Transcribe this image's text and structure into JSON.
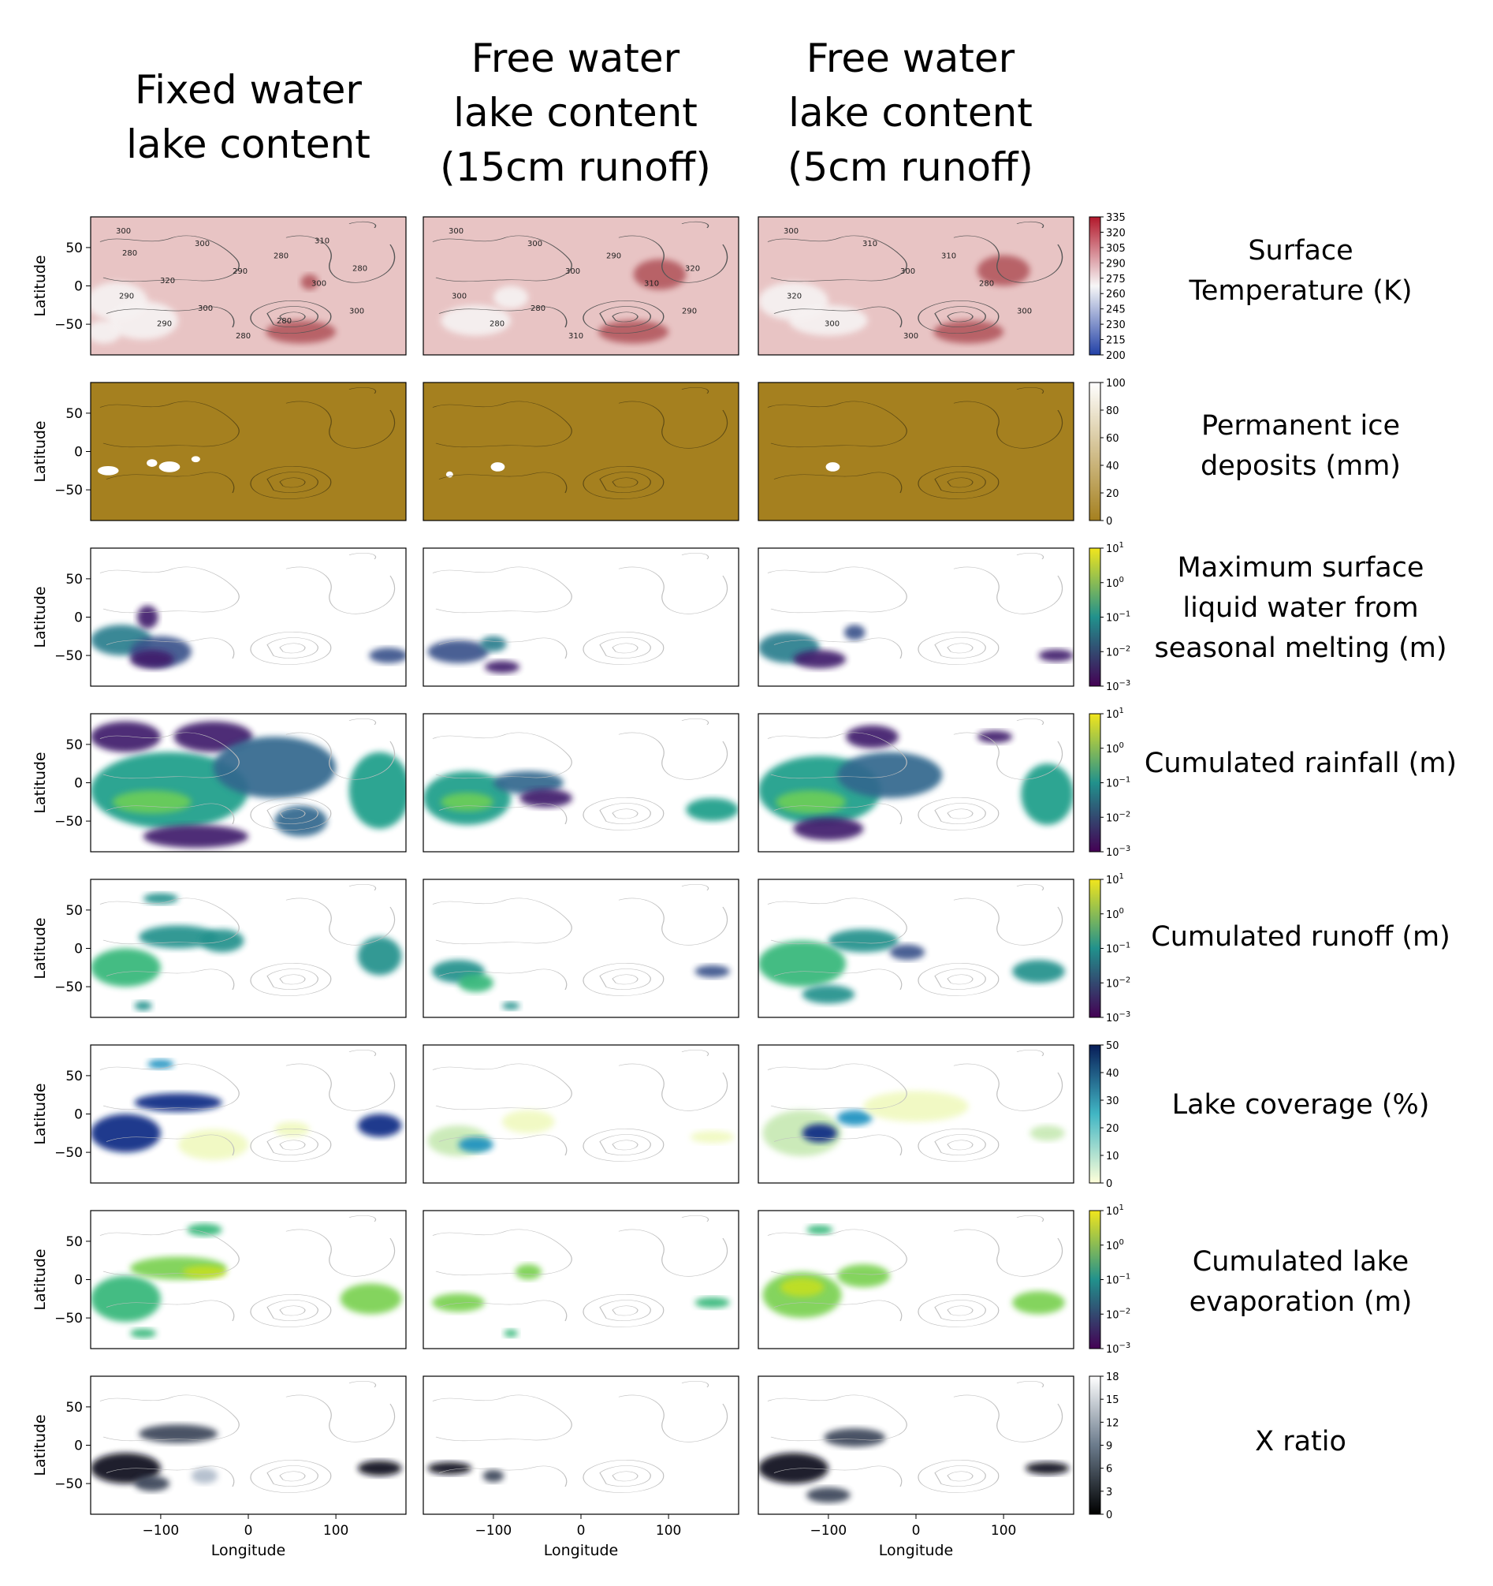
{
  "columns": [
    {
      "title_lines": [
        "Fixed water",
        "lake content"
      ]
    },
    {
      "title_lines": [
        "Free water",
        "lake content",
        "(15cm runoff)"
      ]
    },
    {
      "title_lines": [
        "Free water",
        "lake content",
        "(5cm runoff)"
      ]
    }
  ],
  "rows": [
    {
      "key": "temp",
      "label_lines": [
        "Surface",
        "Temperature (K)"
      ],
      "colorbar_ticks": [
        "335",
        "320",
        "305",
        "290",
        "275",
        "260",
        "245",
        "230",
        "215",
        "200"
      ],
      "colors": {
        "bg": "#e8c4c4",
        "low": "#f6f2f2",
        "high": "#b45a60",
        "cbar_top": "#b2182b",
        "cbar_mid": "#f7f7f7",
        "cbar_bottom": "#2140a6"
      },
      "contour_labels": [
        [
          "300",
          "290",
          "300",
          "300",
          "300",
          "290",
          "280",
          "290",
          "280",
          "280",
          "300",
          "310",
          "320",
          "280",
          "280"
        ],
        [
          "300",
          "300",
          "290",
          "300",
          "310",
          "280",
          "290",
          "300",
          "310",
          "320",
          "280"
        ],
        [
          "300",
          "300",
          "300",
          "310",
          "280",
          "300",
          "310",
          "320",
          "300"
        ]
      ]
    },
    {
      "key": "ice",
      "label_lines": [
        "Permanent ice",
        "deposits (mm)"
      ],
      "colorbar_ticks": [
        "100",
        "80",
        "60",
        "40",
        "20",
        "0"
      ],
      "colors": {
        "bg": "#a5801f",
        "cbar_top": "#ffffff",
        "cbar_bottom": "#a5801f"
      }
    },
    {
      "key": "melt",
      "label_lines": [
        "Maximum surface",
        "liquid water from",
        "seasonal melting (m)"
      ],
      "colorbar_ticks": [
        "10^1",
        "10^0",
        "10^-1",
        "10^-2",
        "10^-3"
      ],
      "colors": {
        "bg": "#ffffff",
        "a": "#2a7e8e",
        "b": "#3b528b",
        "c": "#3f1e6c",
        "cbar_top": "#f1e51d",
        "cbar_mid": "#21918c",
        "cbar_bottom": "#440154"
      }
    },
    {
      "key": "rain",
      "label_lines": [
        "Cumulated rainfall (m)"
      ],
      "colorbar_ticks": [
        "10^1",
        "10^0",
        "10^-1",
        "10^-2",
        "10^-3"
      ],
      "colors": {
        "bg": "#ffffff",
        "a": "#1f9e89",
        "b": "#31688e",
        "c": "#3f1e6c",
        "d": "#6cce59",
        "cbar_top": "#f1e51d",
        "cbar_mid": "#21918c",
        "cbar_bottom": "#440154"
      }
    },
    {
      "key": "runoff",
      "label_lines": [
        "Cumulated runoff (m)"
      ],
      "colorbar_ticks": [
        "10^1",
        "10^0",
        "10^-1",
        "10^-2",
        "10^-3"
      ],
      "colors": {
        "bg": "#ffffff",
        "a": "#35b779",
        "b": "#21918c",
        "c": "#3b528b",
        "cbar_top": "#f1e51d",
        "cbar_mid": "#21918c",
        "cbar_bottom": "#440154"
      }
    },
    {
      "key": "lake",
      "label_lines": [
        "Lake coverage (%)"
      ],
      "colorbar_ticks": [
        "50",
        "40",
        "30",
        "20",
        "10",
        "0"
      ],
      "colors": {
        "bg": "#ffffff",
        "a": "#0c2c84",
        "b": "#1d91c0",
        "c": "#c7e9b4",
        "d": "#f0f9c0",
        "cbar_top": "#081d58",
        "cbar_mid": "#41b6c4",
        "cbar_bottom": "#ffffd9"
      }
    },
    {
      "key": "evap",
      "label_lines": [
        "Cumulated lake",
        "evaporation (m)"
      ],
      "colorbar_ticks": [
        "10^1",
        "10^0",
        "10^-1",
        "10^-2",
        "10^-3"
      ],
      "colors": {
        "bg": "#ffffff",
        "a": "#7ad151",
        "b": "#35b779",
        "c": "#c2df23",
        "cbar_top": "#f1e51d",
        "cbar_mid": "#21918c",
        "cbar_bottom": "#440154"
      }
    },
    {
      "key": "xratio",
      "label_lines": [
        "X ratio"
      ],
      "colorbar_ticks": [
        "18",
        "15",
        "12",
        "9",
        "6",
        "3",
        "0"
      ],
      "colors": {
        "bg": "#ffffff",
        "a": "#0d0d1a",
        "b": "#3a4458",
        "c": "#b0bccb",
        "cbar_top": "#ffffff",
        "cbar_mid": "#6b7b8c",
        "cbar_bottom": "#000000"
      }
    }
  ],
  "chart_data": {
    "type": "heatmap",
    "layout": "8 rows x 3 columns of global longitude-latitude maps",
    "ylabel": "Latitude",
    "xlabel": "Longitude",
    "yticks": [
      50,
      0,
      -50
    ],
    "xticks": [
      -100,
      0,
      100
    ],
    "xlim": [
      -180,
      180
    ],
    "ylim": [
      -90,
      90
    ],
    "ytick_labels": [
      "50",
      "0",
      "−50"
    ],
    "xtick_labels": [
      "−100",
      "0",
      "100"
    ],
    "notes": "Blob regions give approximate spatial coverage in lon/lat (degrees); values are qualitative."
  },
  "blobs": {
    "temp": [
      [
        {
          "lon": -150,
          "lat": -20,
          "rx": 35,
          "ry": 25,
          "c": "low"
        },
        {
          "lon": -120,
          "lat": -45,
          "rx": 40,
          "ry": 25,
          "c": "low"
        },
        {
          "lon": -165,
          "lat": -60,
          "rx": 20,
          "ry": 15,
          "c": "low"
        },
        {
          "lon": 70,
          "lat": 5,
          "rx": 10,
          "ry": 10,
          "c": "high"
        },
        {
          "lon": 60,
          "lat": -60,
          "rx": 40,
          "ry": 15,
          "c": "high"
        }
      ],
      [
        {
          "lon": -120,
          "lat": -45,
          "rx": 40,
          "ry": 20,
          "c": "low"
        },
        {
          "lon": -80,
          "lat": -15,
          "rx": 20,
          "ry": 15,
          "c": "low"
        },
        {
          "lon": 90,
          "lat": 15,
          "rx": 30,
          "ry": 20,
          "c": "high"
        },
        {
          "lon": 60,
          "lat": -60,
          "rx": 40,
          "ry": 15,
          "c": "high"
        }
      ],
      [
        {
          "lon": -140,
          "lat": -20,
          "rx": 40,
          "ry": 25,
          "c": "low"
        },
        {
          "lon": -100,
          "lat": -45,
          "rx": 45,
          "ry": 20,
          "c": "low"
        },
        {
          "lon": 100,
          "lat": 20,
          "rx": 30,
          "ry": 20,
          "c": "high"
        },
        {
          "lon": 60,
          "lat": -60,
          "rx": 40,
          "ry": 15,
          "c": "high"
        }
      ]
    ],
    "ice": [
      [
        {
          "lon": -160,
          "lat": -25,
          "rx": 12,
          "ry": 6,
          "c": "cbar_top"
        },
        {
          "lon": -110,
          "lat": -15,
          "rx": 6,
          "ry": 5,
          "c": "cbar_top"
        },
        {
          "lon": -90,
          "lat": -20,
          "rx": 12,
          "ry": 7,
          "c": "cbar_top"
        },
        {
          "lon": -60,
          "lat": -10,
          "rx": 5,
          "ry": 4,
          "c": "cbar_top"
        }
      ],
      [
        {
          "lon": -150,
          "lat": -30,
          "rx": 4,
          "ry": 4,
          "c": "cbar_top"
        },
        {
          "lon": -95,
          "lat": -20,
          "rx": 8,
          "ry": 6,
          "c": "cbar_top"
        }
      ],
      [
        {
          "lon": -95,
          "lat": -20,
          "rx": 8,
          "ry": 6,
          "c": "cbar_top"
        }
      ]
    ],
    "melt": [
      [
        {
          "lon": -145,
          "lat": -30,
          "rx": 35,
          "ry": 20,
          "c": "a"
        },
        {
          "lon": -100,
          "lat": -45,
          "rx": 35,
          "ry": 20,
          "c": "b"
        },
        {
          "lon": -115,
          "lat": 0,
          "rx": 12,
          "ry": 15,
          "c": "c"
        },
        {
          "lon": -110,
          "lat": -55,
          "rx": 25,
          "ry": 12,
          "c": "c"
        },
        {
          "lon": 160,
          "lat": -50,
          "rx": 22,
          "ry": 10,
          "c": "b"
        }
      ],
      [
        {
          "lon": -140,
          "lat": -45,
          "rx": 35,
          "ry": 15,
          "c": "b"
        },
        {
          "lon": -100,
          "lat": -35,
          "rx": 15,
          "ry": 10,
          "c": "a"
        },
        {
          "lon": -90,
          "lat": -65,
          "rx": 20,
          "ry": 8,
          "c": "c"
        }
      ],
      [
        {
          "lon": -145,
          "lat": -40,
          "rx": 35,
          "ry": 20,
          "c": "a"
        },
        {
          "lon": -110,
          "lat": -55,
          "rx": 30,
          "ry": 12,
          "c": "c"
        },
        {
          "lon": -70,
          "lat": -20,
          "rx": 12,
          "ry": 10,
          "c": "b"
        },
        {
          "lon": 160,
          "lat": -50,
          "rx": 20,
          "ry": 8,
          "c": "c"
        }
      ]
    ],
    "rain": [
      [
        {
          "lon": -90,
          "lat": -10,
          "rx": 90,
          "ry": 50,
          "c": "a"
        },
        {
          "lon": -140,
          "lat": 60,
          "rx": 40,
          "ry": 20,
          "c": "c"
        },
        {
          "lon": -40,
          "lat": 60,
          "rx": 45,
          "ry": 20,
          "c": "c"
        },
        {
          "lon": 30,
          "lat": 20,
          "rx": 70,
          "ry": 40,
          "c": "b"
        },
        {
          "lon": -110,
          "lat": -25,
          "rx": 45,
          "ry": 15,
          "c": "d"
        },
        {
          "lon": 150,
          "lat": -10,
          "rx": 35,
          "ry": 50,
          "c": "a"
        },
        {
          "lon": -60,
          "lat": -70,
          "rx": 60,
          "ry": 15,
          "c": "c"
        },
        {
          "lon": 60,
          "lat": -50,
          "rx": 30,
          "ry": 20,
          "c": "b"
        }
      ],
      [
        {
          "lon": -130,
          "lat": -20,
          "rx": 50,
          "ry": 35,
          "c": "a"
        },
        {
          "lon": -130,
          "lat": -25,
          "rx": 30,
          "ry": 12,
          "c": "d"
        },
        {
          "lon": -60,
          "lat": 0,
          "rx": 40,
          "ry": 15,
          "c": "b"
        },
        {
          "lon": -40,
          "lat": -20,
          "rx": 30,
          "ry": 12,
          "c": "c"
        },
        {
          "lon": 150,
          "lat": -35,
          "rx": 30,
          "ry": 15,
          "c": "a"
        }
      ],
      [
        {
          "lon": -110,
          "lat": -10,
          "rx": 70,
          "ry": 45,
          "c": "a"
        },
        {
          "lon": -120,
          "lat": -25,
          "rx": 40,
          "ry": 15,
          "c": "d"
        },
        {
          "lon": -30,
          "lat": 10,
          "rx": 60,
          "ry": 30,
          "c": "b"
        },
        {
          "lon": 150,
          "lat": -15,
          "rx": 30,
          "ry": 40,
          "c": "a"
        },
        {
          "lon": -50,
          "lat": 60,
          "rx": 30,
          "ry": 15,
          "c": "c"
        },
        {
          "lon": -100,
          "lat": -60,
          "rx": 40,
          "ry": 15,
          "c": "c"
        },
        {
          "lon": 90,
          "lat": 60,
          "rx": 20,
          "ry": 8,
          "c": "c"
        }
      ]
    ],
    "runoff": [
      [
        {
          "lon": -140,
          "lat": -25,
          "rx": 40,
          "ry": 25,
          "c": "a"
        },
        {
          "lon": -80,
          "lat": 15,
          "rx": 45,
          "ry": 15,
          "c": "b"
        },
        {
          "lon": -30,
          "lat": 10,
          "rx": 25,
          "ry": 15,
          "c": "b"
        },
        {
          "lon": -100,
          "lat": 65,
          "rx": 20,
          "ry": 7,
          "c": "b"
        },
        {
          "lon": 150,
          "lat": -10,
          "rx": 25,
          "ry": 25,
          "c": "b"
        },
        {
          "lon": -120,
          "lat": -75,
          "rx": 10,
          "ry": 6,
          "c": "b"
        }
      ],
      [
        {
          "lon": -140,
          "lat": -30,
          "rx": 30,
          "ry": 15,
          "c": "b"
        },
        {
          "lon": -120,
          "lat": -45,
          "rx": 20,
          "ry": 12,
          "c": "a"
        },
        {
          "lon": -80,
          "lat": -75,
          "rx": 10,
          "ry": 5,
          "c": "b"
        },
        {
          "lon": 150,
          "lat": -30,
          "rx": 20,
          "ry": 8,
          "c": "c"
        }
      ],
      [
        {
          "lon": -130,
          "lat": -20,
          "rx": 50,
          "ry": 30,
          "c": "a"
        },
        {
          "lon": -60,
          "lat": 10,
          "rx": 40,
          "ry": 15,
          "c": "b"
        },
        {
          "lon": -100,
          "lat": -60,
          "rx": 30,
          "ry": 12,
          "c": "b"
        },
        {
          "lon": 140,
          "lat": -30,
          "rx": 30,
          "ry": 15,
          "c": "b"
        },
        {
          "lon": -10,
          "lat": -5,
          "rx": 20,
          "ry": 10,
          "c": "c"
        }
      ]
    ],
    "lake": [
      [
        {
          "lon": -140,
          "lat": -25,
          "rx": 40,
          "ry": 25,
          "c": "a"
        },
        {
          "lon": -80,
          "lat": 15,
          "rx": 50,
          "ry": 12,
          "c": "a"
        },
        {
          "lon": -100,
          "lat": 65,
          "rx": 15,
          "ry": 6,
          "c": "b"
        },
        {
          "lon": -40,
          "lat": -40,
          "rx": 40,
          "ry": 20,
          "c": "d"
        },
        {
          "lon": 150,
          "lat": -15,
          "rx": 25,
          "ry": 15,
          "c": "a"
        },
        {
          "lon": 50,
          "lat": -20,
          "rx": 20,
          "ry": 10,
          "c": "d"
        }
      ],
      [
        {
          "lon": -140,
          "lat": -35,
          "rx": 35,
          "ry": 20,
          "c": "c"
        },
        {
          "lon": -120,
          "lat": -40,
          "rx": 20,
          "ry": 10,
          "c": "b"
        },
        {
          "lon": -60,
          "lat": -10,
          "rx": 30,
          "ry": 15,
          "c": "d"
        },
        {
          "lon": 150,
          "lat": -30,
          "rx": 25,
          "ry": 8,
          "c": "d"
        }
      ],
      [
        {
          "lon": -130,
          "lat": -25,
          "rx": 45,
          "ry": 30,
          "c": "c"
        },
        {
          "lon": -110,
          "lat": -25,
          "rx": 20,
          "ry": 12,
          "c": "a"
        },
        {
          "lon": -70,
          "lat": -5,
          "rx": 20,
          "ry": 10,
          "c": "b"
        },
        {
          "lon": 0,
          "lat": 10,
          "rx": 60,
          "ry": 20,
          "c": "d"
        },
        {
          "lon": 150,
          "lat": -25,
          "rx": 20,
          "ry": 10,
          "c": "c"
        }
      ]
    ],
    "evap": [
      [
        {
          "lon": -140,
          "lat": -25,
          "rx": 40,
          "ry": 30,
          "c": "b"
        },
        {
          "lon": -80,
          "lat": 15,
          "rx": 55,
          "ry": 15,
          "c": "a"
        },
        {
          "lon": -50,
          "lat": 10,
          "rx": 25,
          "ry": 8,
          "c": "c"
        },
        {
          "lon": -50,
          "lat": 65,
          "rx": 20,
          "ry": 8,
          "c": "b"
        },
        {
          "lon": 140,
          "lat": -25,
          "rx": 35,
          "ry": 20,
          "c": "a"
        },
        {
          "lon": -120,
          "lat": -70,
          "rx": 15,
          "ry": 6,
          "c": "b"
        }
      ],
      [
        {
          "lon": -140,
          "lat": -30,
          "rx": 30,
          "ry": 12,
          "c": "a"
        },
        {
          "lon": -60,
          "lat": 10,
          "rx": 15,
          "ry": 10,
          "c": "a"
        },
        {
          "lon": 150,
          "lat": -30,
          "rx": 20,
          "ry": 7,
          "c": "b"
        },
        {
          "lon": -80,
          "lat": -70,
          "rx": 8,
          "ry": 5,
          "c": "b"
        }
      ],
      [
        {
          "lon": -130,
          "lat": -20,
          "rx": 45,
          "ry": 30,
          "c": "a"
        },
        {
          "lon": -130,
          "lat": -10,
          "rx": 25,
          "ry": 12,
          "c": "c"
        },
        {
          "lon": -60,
          "lat": 5,
          "rx": 30,
          "ry": 15,
          "c": "a"
        },
        {
          "lon": 140,
          "lat": -30,
          "rx": 30,
          "ry": 15,
          "c": "a"
        },
        {
          "lon": -110,
          "lat": 65,
          "rx": 15,
          "ry": 6,
          "c": "b"
        }
      ]
    ],
    "xratio": [
      [
        {
          "lon": -140,
          "lat": -30,
          "rx": 40,
          "ry": 20,
          "c": "a"
        },
        {
          "lon": -80,
          "lat": 15,
          "rx": 45,
          "ry": 12,
          "c": "b"
        },
        {
          "lon": -50,
          "lat": -40,
          "rx": 15,
          "ry": 10,
          "c": "c"
        },
        {
          "lon": 150,
          "lat": -30,
          "rx": 25,
          "ry": 10,
          "c": "a"
        },
        {
          "lon": -110,
          "lat": -50,
          "rx": 20,
          "ry": 10,
          "c": "b"
        }
      ],
      [
        {
          "lon": -150,
          "lat": -30,
          "rx": 25,
          "ry": 8,
          "c": "a"
        },
        {
          "lon": -100,
          "lat": -40,
          "rx": 12,
          "ry": 8,
          "c": "b"
        }
      ],
      [
        {
          "lon": -140,
          "lat": -30,
          "rx": 40,
          "ry": 20,
          "c": "a"
        },
        {
          "lon": -70,
          "lat": 10,
          "rx": 35,
          "ry": 12,
          "c": "b"
        },
        {
          "lon": 150,
          "lat": -30,
          "rx": 25,
          "ry": 8,
          "c": "a"
        },
        {
          "lon": -100,
          "lat": -65,
          "rx": 25,
          "ry": 10,
          "c": "b"
        }
      ]
    ]
  }
}
